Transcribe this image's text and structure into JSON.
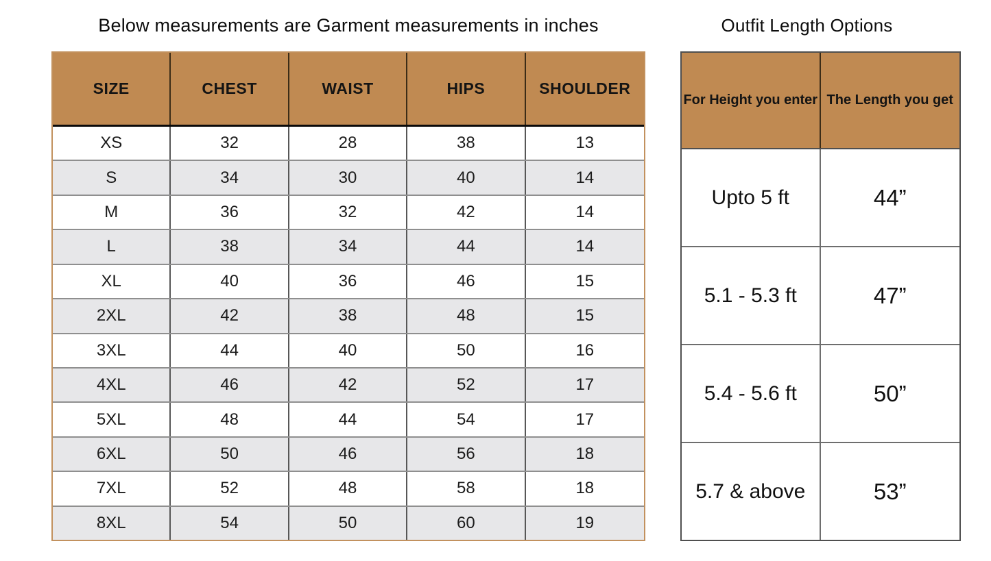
{
  "colors": {
    "header_bg": "#c08a52",
    "stripe_bg": "#e7e7e9",
    "left_table_border": "#c2915e",
    "right_table_border": "#4f4f4f"
  },
  "size_chart": {
    "title": "Below measurements are Garment measurements in inches",
    "headers": [
      "SIZE",
      "CHEST",
      "WAIST",
      "HIPS",
      "SHOULDER"
    ],
    "rows": [
      [
        "XS",
        "32",
        "28",
        "38",
        "13"
      ],
      [
        "S",
        "34",
        "30",
        "40",
        "14"
      ],
      [
        "M",
        "36",
        "32",
        "42",
        "14"
      ],
      [
        "L",
        "38",
        "34",
        "44",
        "14"
      ],
      [
        "XL",
        "40",
        "36",
        "46",
        "15"
      ],
      [
        "2XL",
        "42",
        "38",
        "48",
        "15"
      ],
      [
        "3XL",
        "44",
        "40",
        "50",
        "16"
      ],
      [
        "4XL",
        "46",
        "42",
        "52",
        "17"
      ],
      [
        "5XL",
        "48",
        "44",
        "54",
        "17"
      ],
      [
        "6XL",
        "50",
        "46",
        "56",
        "18"
      ],
      [
        "7XL",
        "52",
        "48",
        "58",
        "18"
      ],
      [
        "8XL",
        "54",
        "50",
        "60",
        "19"
      ]
    ]
  },
  "length_chart": {
    "title": "Outfit Length Options",
    "headers": [
      "For Height you enter",
      "The Length you get"
    ],
    "rows": [
      [
        "Upto 5 ft",
        "44”"
      ],
      [
        "5.1 - 5.3 ft",
        "47”"
      ],
      [
        "5.4 - 5.6 ft",
        "50”"
      ],
      [
        "5.7 & above",
        "53”"
      ]
    ]
  }
}
